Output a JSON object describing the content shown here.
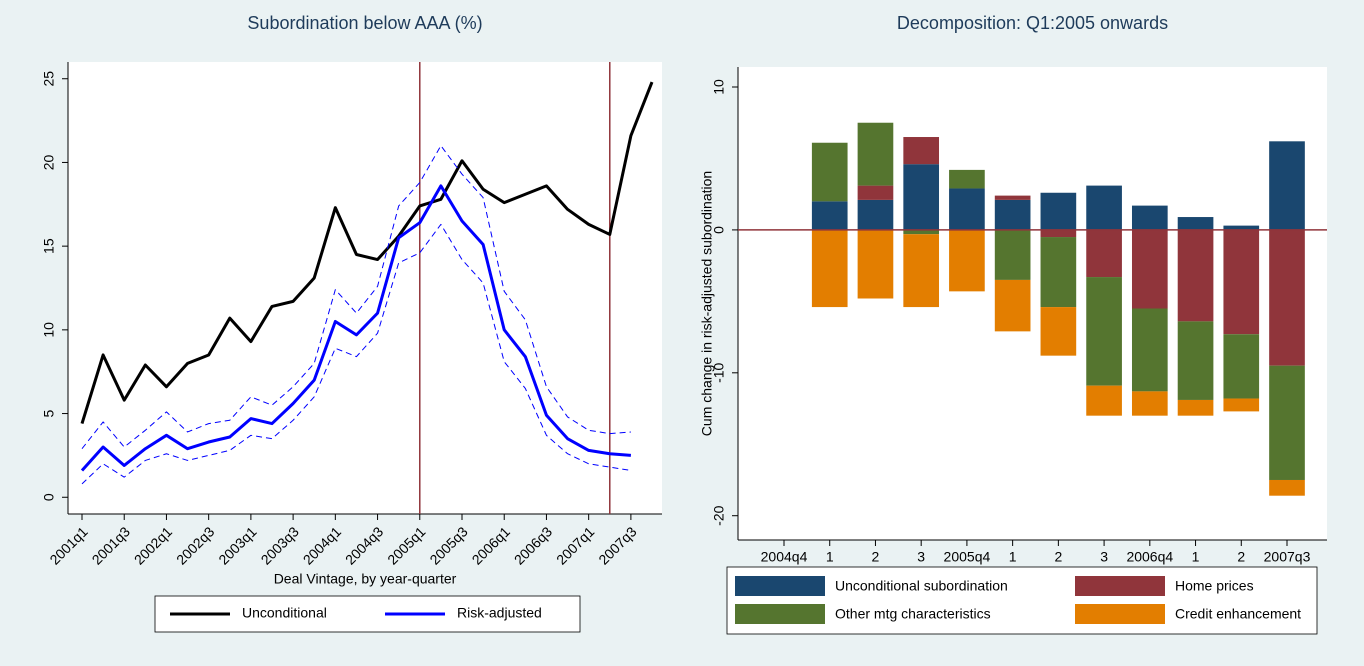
{
  "chart_data": [
    {
      "type": "line",
      "title": "Subordination below AAA (%)",
      "x_label": "Deal Vintage, by year-quarter",
      "categories": [
        "2001q1",
        null,
        "2001q3",
        null,
        "2002q1",
        null,
        "2002q3",
        null,
        "2003q1",
        null,
        "2003q3",
        null,
        "2004q1",
        null,
        "2004q3",
        null,
        "2005q1",
        null,
        "2005q3",
        null,
        "2006q1",
        null,
        "2006q3",
        null,
        "2007q1",
        null,
        "2007q3",
        null
      ],
      "series": [
        {
          "name": "Unconditional",
          "color": "#000000",
          "width": 3,
          "values": [
            4.4,
            8.5,
            5.8,
            7.9,
            6.6,
            8.0,
            8.5,
            10.7,
            9.3,
            11.4,
            11.7,
            13.1,
            17.3,
            14.5,
            14.2,
            15.6,
            17.4,
            17.8,
            20.1,
            18.4,
            17.6,
            18.1,
            18.6,
            17.2,
            16.3,
            15.7,
            21.6,
            24.8
          ]
        },
        {
          "name": "Risk-adjusted",
          "color": "#0000ff",
          "width": 3,
          "values": [
            1.6,
            3.0,
            1.9,
            2.9,
            3.7,
            2.9,
            3.3,
            3.6,
            4.7,
            4.4,
            5.6,
            7.0,
            10.5,
            9.7,
            11.0,
            15.5,
            16.4,
            18.6,
            16.5,
            15.1,
            10.0,
            8.4,
            4.9,
            3.5,
            2.8,
            2.6,
            2.5,
            null
          ]
        },
        {
          "color": "#0000ff",
          "width": 1,
          "dash": true,
          "values": [
            2.9,
            4.5,
            3.0,
            4.0,
            5.1,
            3.9,
            4.4,
            4.6,
            6.0,
            5.5,
            6.6,
            8.0,
            12.4,
            11.0,
            12.6,
            17.4,
            18.8,
            21.0,
            19.3,
            17.9,
            12.3,
            10.6,
            6.6,
            4.8,
            4.0,
            3.8,
            3.9,
            null
          ]
        },
        {
          "color": "#0000ff",
          "width": 1,
          "dash": true,
          "values": [
            0.8,
            2.0,
            1.2,
            2.2,
            2.6,
            2.2,
            2.5,
            2.8,
            3.7,
            3.5,
            4.6,
            6.0,
            8.9,
            8.4,
            9.8,
            14.0,
            14.6,
            16.3,
            14.2,
            12.8,
            8.1,
            6.5,
            3.7,
            2.6,
            2.0,
            1.8,
            1.6,
            null
          ]
        }
      ],
      "ylim": [
        -1,
        26
      ],
      "yticks": [
        0,
        5,
        10,
        15,
        20,
        25
      ],
      "vlines": [
        16,
        25
      ],
      "ref_color": "#90353b",
      "legend": "bottom"
    },
    {
      "type": "bar",
      "stacked": true,
      "title": "Decomposition: Q1:2005 onwards",
      "y_label": "Cum change in risk-adjusted subordination",
      "categories": [
        "2004q4",
        "1",
        "2",
        "3",
        "2005q4",
        "1",
        "2",
        "3",
        "2006q4",
        "1",
        "2",
        "2007q3"
      ],
      "series": [
        {
          "name": "Unconditional subordination",
          "color": "#1a476f",
          "values": [
            null,
            2.0,
            2.1,
            4.6,
            2.9,
            2.1,
            2.6,
            3.1,
            1.7,
            0.9,
            0.3,
            6.2
          ]
        },
        {
          "name": "Home prices",
          "color": "#90353b",
          "values": [
            null,
            0,
            1.0,
            1.9,
            0,
            0.3,
            -0.5,
            -3.3,
            -5.5,
            -6.4,
            -7.3,
            -9.5
          ]
        },
        {
          "name": "Other mtg characteristics",
          "color": "#55752f",
          "values": [
            null,
            4.1,
            4.4,
            -0.3,
            1.3,
            -3.5,
            -4.9,
            -7.6,
            -5.8,
            -5.5,
            -4.5,
            -8.0
          ]
        },
        {
          "name": "Credit enhancement",
          "color": "#e37e00",
          "values": [
            null,
            -5.4,
            -4.8,
            -5.1,
            -4.3,
            -3.6,
            -3.4,
            -2.1,
            -1.7,
            -1.1,
            -0.9,
            -1.1
          ]
        }
      ],
      "ylim": [
        -21.7,
        11.4
      ],
      "yticks": [
        10,
        0,
        -10,
        -20
      ],
      "hlines": [
        0
      ],
      "ref_color": "#90353b",
      "legend": "bottom"
    }
  ]
}
